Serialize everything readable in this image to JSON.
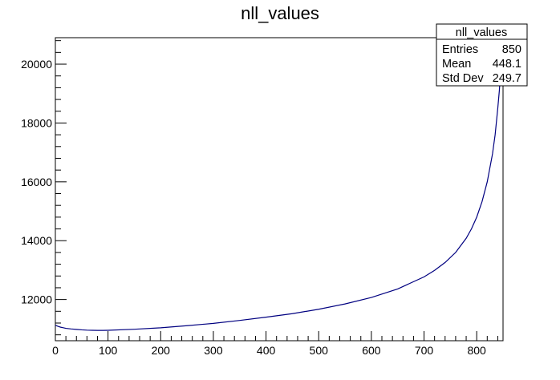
{
  "chart_data": {
    "type": "line",
    "title": "nll_values",
    "xlabel": "",
    "ylabel": "",
    "xlim": [
      0,
      850
    ],
    "ylim": [
      10600,
      20900
    ],
    "x_ticks": [
      0,
      100,
      200,
      300,
      400,
      500,
      600,
      700,
      800
    ],
    "y_ticks": [
      12000,
      14000,
      16000,
      18000,
      20000
    ],
    "grid": false,
    "series": [
      {
        "color": "#000080",
        "x": [
          0,
          5,
          10,
          15,
          20,
          30,
          40,
          50,
          60,
          70,
          80,
          90,
          100,
          150,
          200,
          250,
          300,
          350,
          400,
          450,
          500,
          550,
          600,
          650,
          700,
          720,
          740,
          760,
          780,
          790,
          800,
          810,
          820,
          830,
          835,
          840,
          843,
          846,
          848,
          850
        ],
        "y": [
          11130,
          11090,
          11060,
          11040,
          11020,
          11000,
          10985,
          10970,
          10960,
          10955,
          10950,
          10950,
          10955,
          10990,
          11040,
          11110,
          11190,
          11290,
          11400,
          11520,
          11670,
          11850,
          12070,
          12360,
          12770,
          12990,
          13260,
          13600,
          14080,
          14400,
          14800,
          15320,
          16000,
          16950,
          17600,
          18500,
          19100,
          19900,
          20500,
          20900
        ]
      }
    ],
    "stats_box": {
      "title": "nll_values",
      "placement": "top-right",
      "rows": [
        {
          "label": "Entries",
          "value": "850"
        },
        {
          "label": "Mean",
          "value": "448.1"
        },
        {
          "label": "Std Dev",
          "value": "249.7"
        }
      ]
    }
  }
}
